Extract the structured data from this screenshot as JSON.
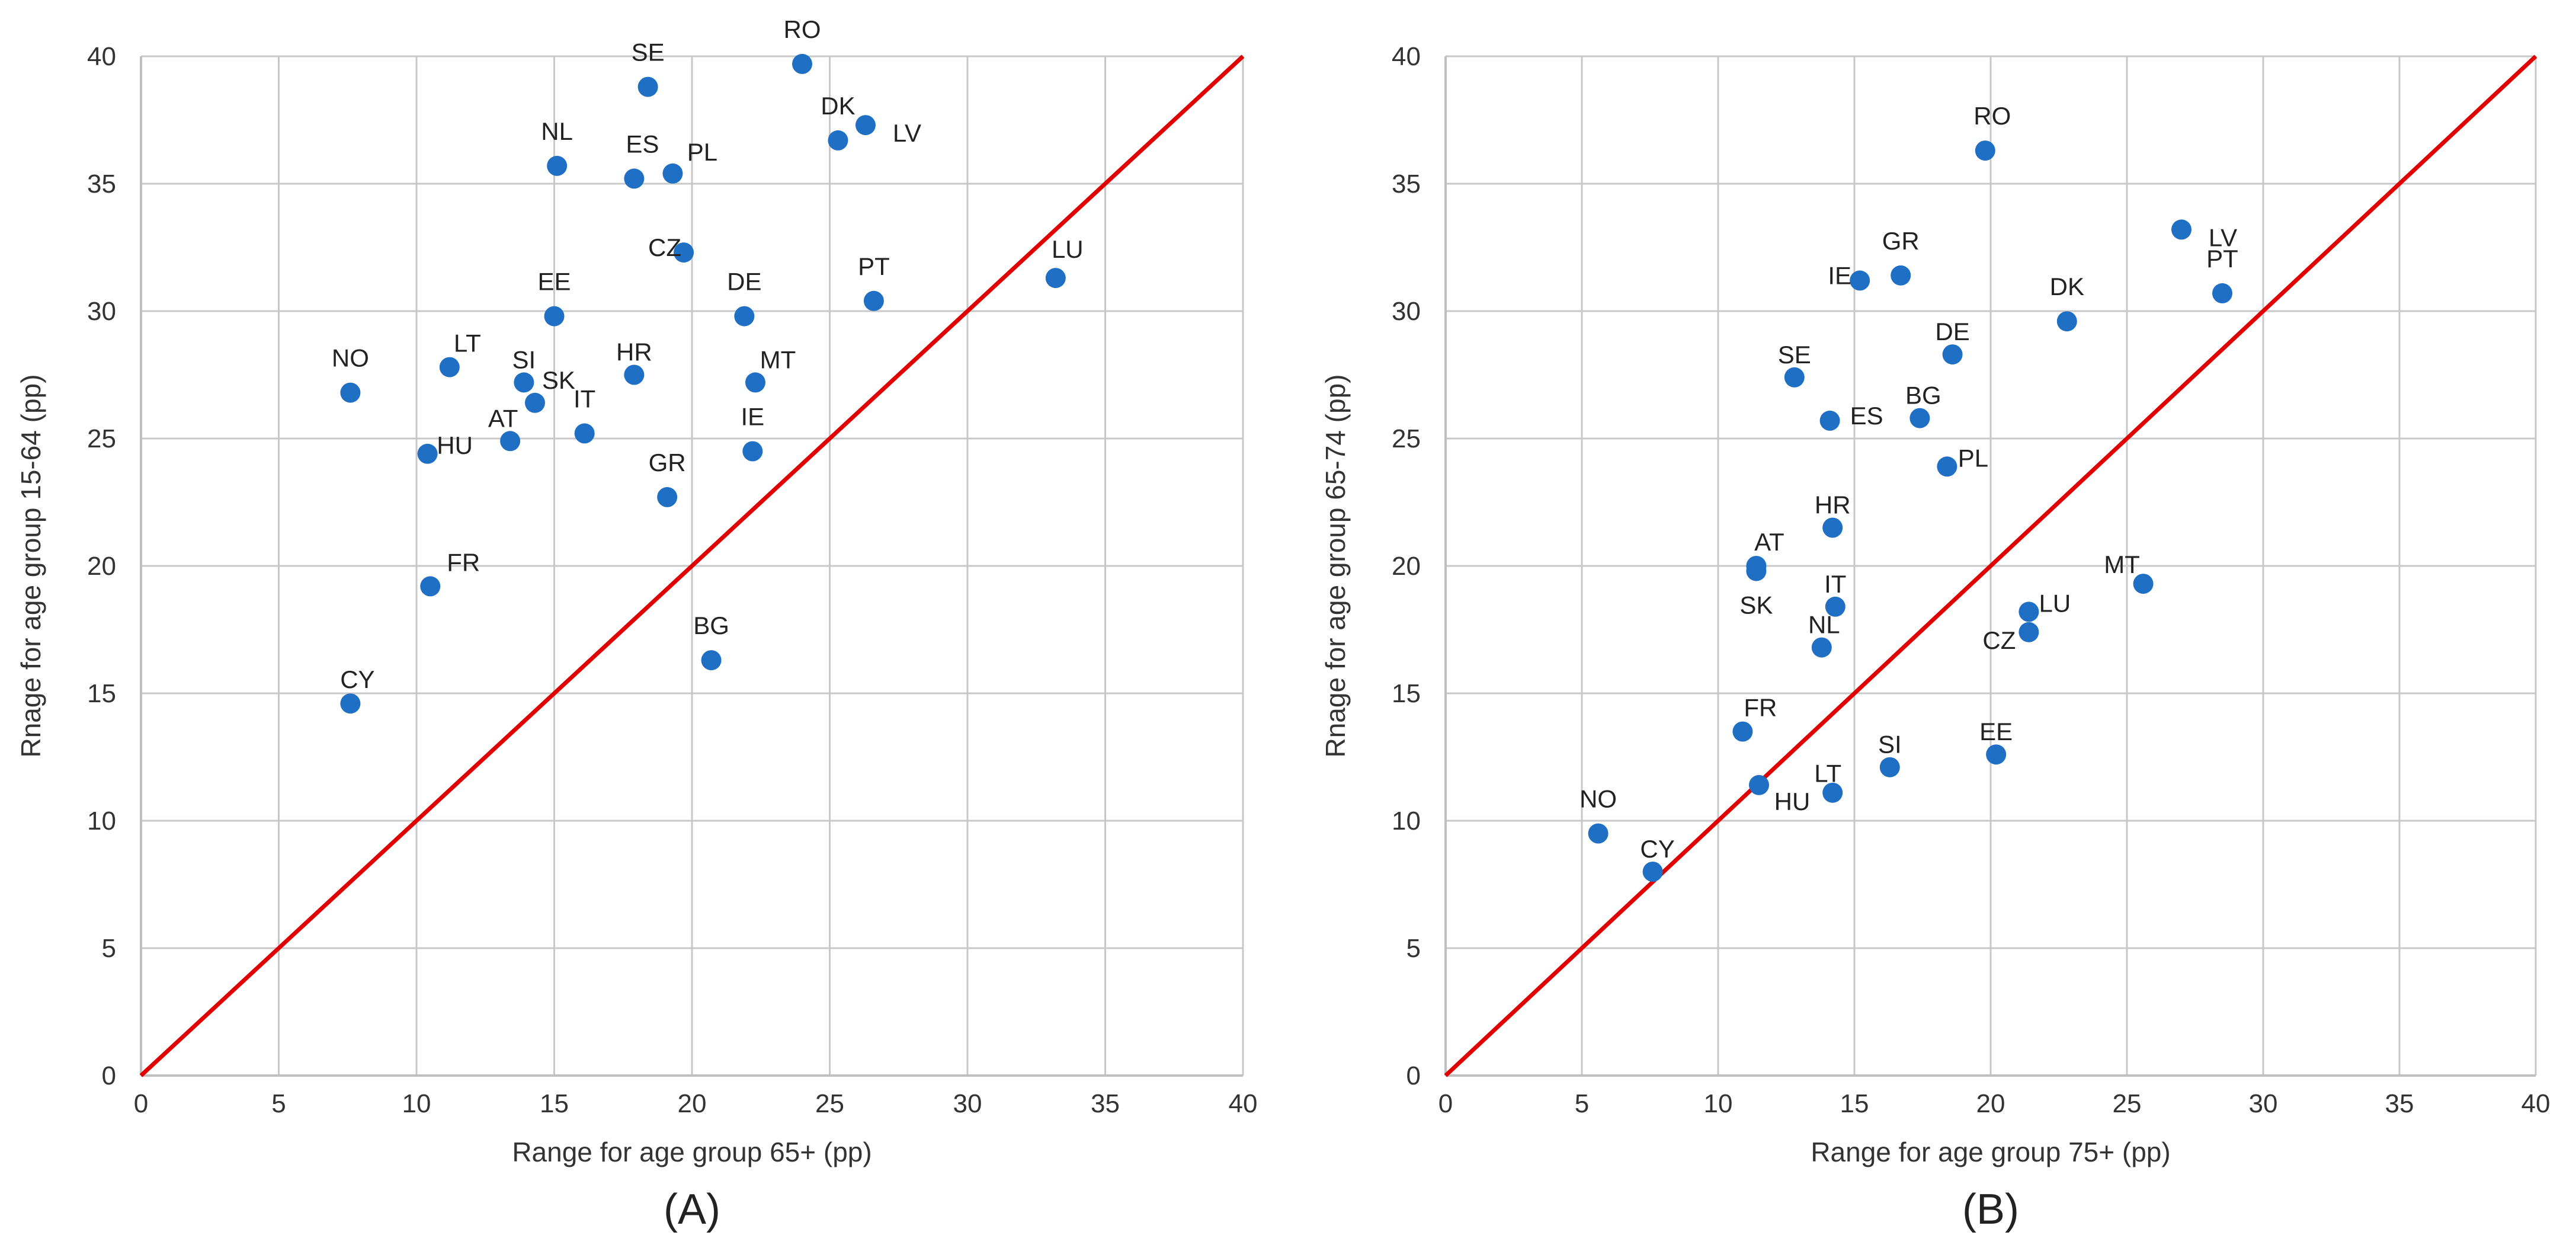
{
  "chart_data": [
    {
      "type": "scatter",
      "panel_label": "(A)",
      "xlabel": "Range for age group 65+ (pp)",
      "ylabel": "Rnage for age group 15-64 (pp)",
      "xlim": [
        0,
        40
      ],
      "ylim": [
        0,
        40
      ],
      "xticks": [
        "0",
        "5",
        "10",
        "15",
        "20",
        "25",
        "30",
        "35",
        "40"
      ],
      "yticks": [
        "0",
        "5",
        "10",
        "15",
        "20",
        "25",
        "30",
        "35",
        "40"
      ],
      "grid": true,
      "reference_line": "y = x",
      "point_color": "#1F6FC5",
      "line_color": "#E00000",
      "points": [
        {
          "label": "SE",
          "x": 18.4,
          "y": 38.8
        },
        {
          "label": "RO",
          "x": 24.0,
          "y": 39.7
        },
        {
          "label": "DK",
          "x": 25.3,
          "y": 36.7
        },
        {
          "label": "LV",
          "x": 26.3,
          "y": 37.3
        },
        {
          "label": "NL",
          "x": 15.1,
          "y": 35.7
        },
        {
          "label": "ES",
          "x": 17.9,
          "y": 35.2
        },
        {
          "label": "PL",
          "x": 19.3,
          "y": 35.4
        },
        {
          "label": "CZ",
          "x": 19.7,
          "y": 32.3
        },
        {
          "label": "LU",
          "x": 33.2,
          "y": 31.3
        },
        {
          "label": "EE",
          "x": 15.0,
          "y": 29.8
        },
        {
          "label": "DE",
          "x": 21.9,
          "y": 29.8
        },
        {
          "label": "PT",
          "x": 26.6,
          "y": 30.4
        },
        {
          "label": "NO",
          "x": 7.6,
          "y": 26.8
        },
        {
          "label": "LT",
          "x": 11.2,
          "y": 27.8
        },
        {
          "label": "SI",
          "x": 13.9,
          "y": 27.2
        },
        {
          "label": "SK",
          "x": 14.3,
          "y": 26.4
        },
        {
          "label": "HR",
          "x": 17.9,
          "y": 27.5
        },
        {
          "label": "MT",
          "x": 22.3,
          "y": 27.2
        },
        {
          "label": "AT",
          "x": 13.4,
          "y": 24.9
        },
        {
          "label": "HU",
          "x": 10.4,
          "y": 24.4
        },
        {
          "label": "IT",
          "x": 16.1,
          "y": 25.2
        },
        {
          "label": "IE",
          "x": 22.2,
          "y": 24.5
        },
        {
          "label": "GR",
          "x": 19.1,
          "y": 22.7
        },
        {
          "label": "FR",
          "x": 10.5,
          "y": 19.2
        },
        {
          "label": "BG",
          "x": 20.7,
          "y": 16.3
        },
        {
          "label": "CY",
          "x": 7.6,
          "y": 14.6
        }
      ]
    },
    {
      "type": "scatter",
      "panel_label": "(B)",
      "xlabel": "Range for age group 75+ (pp)",
      "ylabel": "Rnage for age group 65-74 (pp)",
      "xlim": [
        0,
        40
      ],
      "ylim": [
        0,
        40
      ],
      "xticks": [
        "0",
        "5",
        "10",
        "15",
        "20",
        "25",
        "30",
        "35",
        "40"
      ],
      "yticks": [
        "0",
        "5",
        "10",
        "15",
        "20",
        "25",
        "30",
        "35",
        "40"
      ],
      "grid": true,
      "reference_line": "y = x",
      "point_color": "#1F6FC5",
      "line_color": "#E00000",
      "points": [
        {
          "label": "RO",
          "x": 19.8,
          "y": 36.3
        },
        {
          "label": "LV",
          "x": 27.0,
          "y": 33.2
        },
        {
          "label": "PT",
          "x": 28.5,
          "y": 30.7
        },
        {
          "label": "GR",
          "x": 16.7,
          "y": 31.4
        },
        {
          "label": "IE",
          "x": 15.2,
          "y": 31.2
        },
        {
          "label": "DK",
          "x": 22.8,
          "y": 29.6
        },
        {
          "label": "DE",
          "x": 18.6,
          "y": 28.3
        },
        {
          "label": "SE",
          "x": 12.8,
          "y": 27.4
        },
        {
          "label": "BG",
          "x": 17.4,
          "y": 25.8
        },
        {
          "label": "ES",
          "x": 14.1,
          "y": 25.7
        },
        {
          "label": "PL",
          "x": 18.4,
          "y": 23.9
        },
        {
          "label": "HR",
          "x": 14.2,
          "y": 21.5
        },
        {
          "label": "AT",
          "x": 11.4,
          "y": 20.0
        },
        {
          "label": "SK",
          "x": 11.4,
          "y": 19.8
        },
        {
          "label": "MT",
          "x": 25.6,
          "y": 19.3
        },
        {
          "label": "IT",
          "x": 14.3,
          "y": 18.4
        },
        {
          "label": "LU",
          "x": 21.4,
          "y": 18.2
        },
        {
          "label": "CZ",
          "x": 21.4,
          "y": 17.4
        },
        {
          "label": "NL",
          "x": 13.8,
          "y": 16.8
        },
        {
          "label": "FR",
          "x": 10.9,
          "y": 13.5
        },
        {
          "label": "EE",
          "x": 20.2,
          "y": 12.6
        },
        {
          "label": "SI",
          "x": 16.3,
          "y": 12.1
        },
        {
          "label": "HU",
          "x": 11.5,
          "y": 11.4
        },
        {
          "label": "LT",
          "x": 14.2,
          "y": 11.1
        },
        {
          "label": "NO",
          "x": 5.6,
          "y": 9.5
        },
        {
          "label": "CY",
          "x": 7.6,
          "y": 8.0
        }
      ]
    }
  ]
}
